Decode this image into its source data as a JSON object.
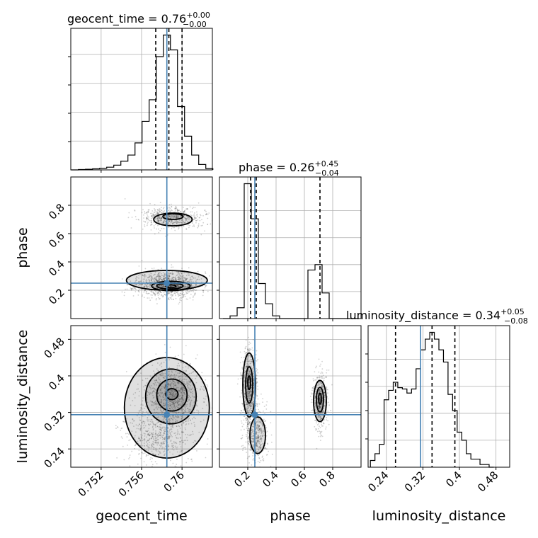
{
  "chart_data": [
    {
      "type": "histogram",
      "panel": "geocent_time-marginal",
      "title": {
        "name": "geocent_time",
        "value": "0.76",
        "plus": "+0.00",
        "minus": "−0.00"
      },
      "xlim": [
        0.749,
        0.763
      ],
      "bins": [
        [
          0.7494,
          0.0
        ],
        [
          0.7501,
          0.003
        ],
        [
          0.7508,
          0.005
        ],
        [
          0.7515,
          0.008
        ],
        [
          0.7522,
          0.012
        ],
        [
          0.7529,
          0.02
        ],
        [
          0.7536,
          0.035
        ],
        [
          0.7543,
          0.065
        ],
        [
          0.755,
          0.11
        ],
        [
          0.7557,
          0.2
        ],
        [
          0.7564,
          0.36
        ],
        [
          0.7571,
          0.52
        ],
        [
          0.7578,
          0.84
        ],
        [
          0.7585,
          1.0
        ],
        [
          0.7592,
          0.89
        ],
        [
          0.7599,
          0.47
        ],
        [
          0.7606,
          0.25
        ],
        [
          0.7613,
          0.11
        ],
        [
          0.762,
          0.04
        ],
        [
          0.7627,
          0.01
        ]
      ],
      "quantiles": [
        0.7574,
        0.7587,
        0.76
      ],
      "truth": 0.7585
    },
    {
      "type": "scatter-density",
      "panel": "geocent_time-vs-phase",
      "xlim": [
        0.749,
        0.763
      ],
      "ylim": [
        0.0,
        1.0
      ],
      "yticks": [
        0.2,
        0.4,
        0.6,
        0.8
      ],
      "ylabel": "phase",
      "clusters": [
        {
          "cx": 0.7586,
          "cy": 0.24,
          "sx": 0.0016,
          "sy": 0.045,
          "n": 1100
        },
        {
          "cx": 0.759,
          "cy": 0.71,
          "sx": 0.0015,
          "sy": 0.04,
          "n": 560
        }
      ],
      "contours": [
        {
          "cx": 0.7589,
          "cy": 0.23,
          "rx": 0.0019,
          "ry": 0.033
        },
        {
          "cx": 0.7588,
          "cy": 0.23,
          "rx": 0.0013,
          "ry": 0.021
        },
        {
          "cx": 0.7589,
          "cy": 0.228,
          "rx": 0.0005,
          "ry": 0.01
        },
        {
          "cx": 0.7585,
          "cy": 0.27,
          "rx": 0.004,
          "ry": 0.07
        },
        {
          "cx": 0.7591,
          "cy": 0.7,
          "rx": 0.0019,
          "ry": 0.045
        },
        {
          "cx": 0.7591,
          "cy": 0.72,
          "rx": 0.001,
          "ry": 0.02
        }
      ],
      "truth": [
        0.7585,
        0.25
      ]
    },
    {
      "type": "histogram",
      "panel": "phase-marginal",
      "title": {
        "name": "phase",
        "value": "0.26",
        "plus": "+0.45",
        "minus": "−0.04"
      },
      "xlim": [
        0.0,
        1.0
      ],
      "bins": [
        [
          0.05,
          0.0
        ],
        [
          0.1,
          0.02
        ],
        [
          0.15,
          0.08
        ],
        [
          0.2,
          1.0
        ],
        [
          0.25,
          0.74
        ],
        [
          0.3,
          0.26
        ],
        [
          0.35,
          0.11
        ],
        [
          0.4,
          0.02
        ],
        [
          0.45,
          0.0
        ],
        [
          0.5,
          0.0
        ],
        [
          0.55,
          0.0
        ],
        [
          0.6,
          0.0
        ],
        [
          0.65,
          0.36
        ],
        [
          0.7,
          0.4
        ],
        [
          0.75,
          0.19
        ],
        [
          0.8,
          0.0
        ],
        [
          0.85,
          0.0
        ],
        [
          0.9,
          0.0
        ],
        [
          0.95,
          0.0
        ]
      ],
      "quantiles": [
        0.22,
        0.26,
        0.71
      ],
      "truth": 0.25
    },
    {
      "type": "scatter-density",
      "panel": "geocent_time-vs-luminosity_distance",
      "xlim": [
        0.749,
        0.763
      ],
      "ylim": [
        0.2,
        0.51
      ],
      "xticks": [
        0.752,
        0.756,
        0.76
      ],
      "yticks": [
        0.24,
        0.32,
        0.4,
        0.48
      ],
      "xlabel": "geocent_time",
      "ylabel": "luminosity_distance",
      "clusters": [
        {
          "cx": 0.7589,
          "cy": 0.355,
          "sx": 0.0014,
          "sy": 0.035,
          "n": 900
        },
        {
          "cx": 0.7578,
          "cy": 0.265,
          "sx": 0.0017,
          "sy": 0.03,
          "n": 550
        }
      ],
      "contours": [
        {
          "cx": 0.7585,
          "cy": 0.33,
          "rx": 0.0042,
          "ry": 0.11
        },
        {
          "cx": 0.7589,
          "cy": 0.355,
          "rx": 0.0025,
          "ry": 0.06
        },
        {
          "cx": 0.759,
          "cy": 0.358,
          "rx": 0.0015,
          "ry": 0.035
        },
        {
          "cx": 0.759,
          "cy": 0.36,
          "rx": 0.0006,
          "ry": 0.012
        }
      ],
      "truth": [
        0.7585,
        0.315
      ]
    },
    {
      "type": "scatter-density",
      "panel": "phase-vs-luminosity_distance",
      "xlim": [
        0.0,
        1.0
      ],
      "ylim": [
        0.2,
        0.51
      ],
      "xticks": [
        0.2,
        0.4,
        0.6,
        0.8
      ],
      "xlabel": "phase",
      "clusters": [
        {
          "cx": 0.21,
          "cy": 0.375,
          "sx": 0.025,
          "sy": 0.045,
          "n": 700
        },
        {
          "cx": 0.26,
          "cy": 0.27,
          "sx": 0.04,
          "sy": 0.03,
          "n": 450
        },
        {
          "cx": 0.71,
          "cy": 0.345,
          "sx": 0.025,
          "sy": 0.03,
          "n": 550
        }
      ],
      "contours": [
        {
          "cx": 0.21,
          "cy": 0.38,
          "rx": 0.045,
          "ry": 0.07
        },
        {
          "cx": 0.21,
          "cy": 0.38,
          "rx": 0.025,
          "ry": 0.04
        },
        {
          "cx": 0.21,
          "cy": 0.385,
          "rx": 0.01,
          "ry": 0.015
        },
        {
          "cx": 0.27,
          "cy": 0.27,
          "rx": 0.055,
          "ry": 0.04
        },
        {
          "cx": 0.71,
          "cy": 0.345,
          "rx": 0.045,
          "ry": 0.045
        },
        {
          "cx": 0.71,
          "cy": 0.348,
          "rx": 0.025,
          "ry": 0.027
        },
        {
          "cx": 0.71,
          "cy": 0.35,
          "rx": 0.01,
          "ry": 0.012
        }
      ],
      "truth": [
        0.25,
        0.315
      ]
    },
    {
      "type": "histogram",
      "panel": "luminosity_distance-marginal",
      "title": {
        "name": "luminosity_distance",
        "value": "0.34",
        "plus": "+0.05",
        "minus": "−0.08"
      },
      "xlim": [
        0.2,
        0.51
      ],
      "xticks": [
        0.24,
        0.32,
        0.4,
        0.48
      ],
      "xlabel": "luminosity_distance",
      "bins": [
        [
          0.21,
          0.05
        ],
        [
          0.22,
          0.1
        ],
        [
          0.23,
          0.17
        ],
        [
          0.24,
          0.5
        ],
        [
          0.25,
          0.57
        ],
        [
          0.26,
          0.63
        ],
        [
          0.27,
          0.59
        ],
        [
          0.28,
          0.58
        ],
        [
          0.29,
          0.55
        ],
        [
          0.3,
          0.58
        ],
        [
          0.31,
          0.73
        ],
        [
          0.32,
          0.87
        ],
        [
          0.33,
          0.95
        ],
        [
          0.34,
          1.0
        ],
        [
          0.35,
          0.95
        ],
        [
          0.36,
          0.87
        ],
        [
          0.37,
          0.78
        ],
        [
          0.38,
          0.54
        ],
        [
          0.39,
          0.42
        ],
        [
          0.4,
          0.26
        ],
        [
          0.41,
          0.2
        ],
        [
          0.42,
          0.1
        ],
        [
          0.43,
          0.06
        ],
        [
          0.44,
          0.06
        ],
        [
          0.45,
          0.02
        ],
        [
          0.46,
          0.02
        ],
        [
          0.47,
          0.0
        ]
      ],
      "quantiles": [
        0.26,
        0.34,
        0.39
      ],
      "truth": 0.315
    }
  ]
}
